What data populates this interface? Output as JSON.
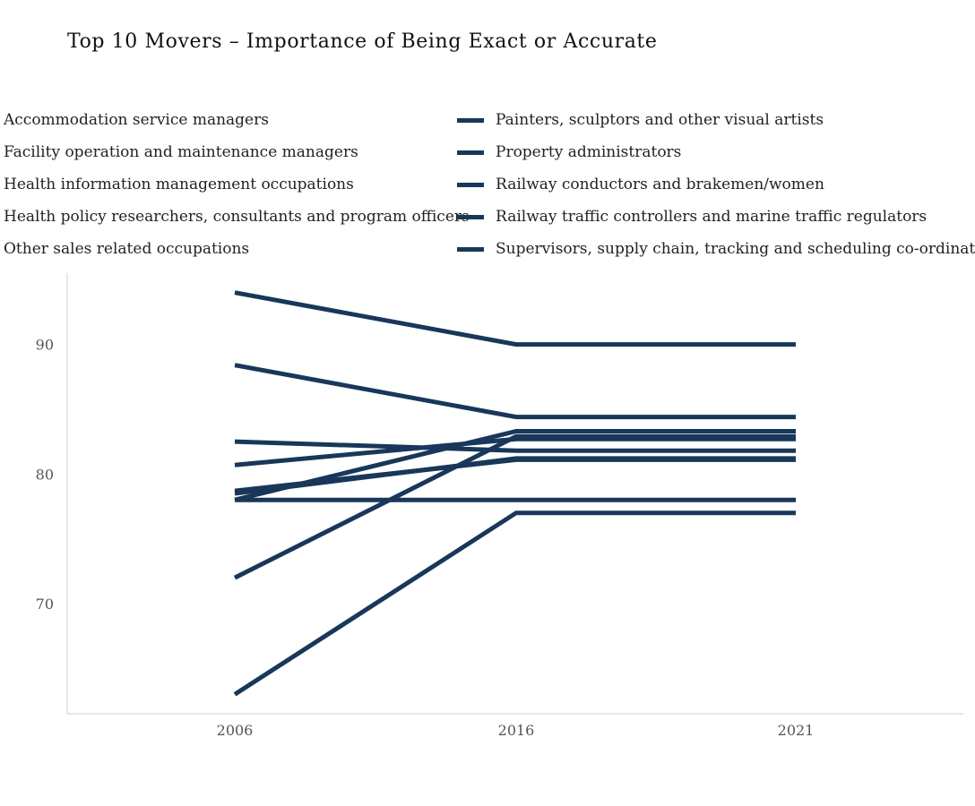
{
  "title": "Top 10 Movers – Importance of Being Exact or Accurate",
  "colors": {
    "line": "#18375a",
    "axis": "#d8d8d8",
    "tick_text": "#555555"
  },
  "chart_data": {
    "type": "line",
    "title": "Top 10 Movers – Importance of Being Exact or Accurate",
    "xlabel": "",
    "ylabel": "",
    "x": [
      "2006",
      "2016",
      "2021"
    ],
    "ylim": [
      61.5,
      95.5
    ],
    "yticks": [
      70,
      80,
      90
    ],
    "grid": false,
    "legend_position": "top",
    "series": [
      {
        "name": "Accommodation service managers",
        "values": [
          94,
          90,
          90
        ]
      },
      {
        "name": "Facility operation and maintenance managers",
        "values": [
          88.4,
          84.4,
          84.4
        ]
      },
      {
        "name": "Health information management occupations",
        "values": [
          82.5,
          81.8,
          81.8
        ]
      },
      {
        "name": "Health policy researchers, consultants and program officers",
        "values": [
          80.7,
          82.7,
          82.7
        ]
      },
      {
        "name": "Other sales related occupations",
        "values": [
          78.7,
          81.1,
          81.1
        ]
      },
      {
        "name": "Painters, sculptors and other visual artists",
        "values": [
          78.5,
          81.2,
          81.2
        ]
      },
      {
        "name": "Property administrators",
        "values": [
          78,
          83.3,
          83.3
        ]
      },
      {
        "name": "Railway conductors and brakemen/women",
        "values": [
          78,
          78,
          78
        ]
      },
      {
        "name": "Railway traffic controllers and marine traffic regulators",
        "values": [
          72,
          82.9,
          82.9
        ]
      },
      {
        "name": "Supervisors, supply chain, tracking and scheduling co-ordination",
        "values": [
          63,
          77,
          77
        ]
      }
    ]
  }
}
